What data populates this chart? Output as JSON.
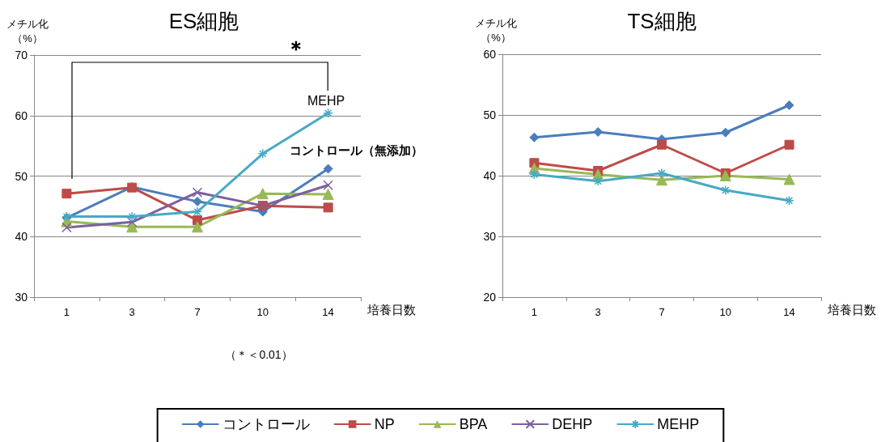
{
  "chart_data": [
    {
      "type": "line",
      "title": "ES細胞",
      "ylabel": "メチル化（%）",
      "xlabel": "培養日数",
      "categories": [
        "1",
        "3",
        "7",
        "10",
        "14"
      ],
      "series": [
        {
          "name": "コントロール",
          "color": "#4a7ebb",
          "marker": "diamond",
          "values": [
            43.1,
            48.2,
            45.8,
            44.1,
            51.2
          ]
        },
        {
          "name": "NP",
          "color": "#be4b48",
          "marker": "square",
          "values": [
            47.1,
            48.1,
            42.7,
            45.1,
            44.8
          ]
        },
        {
          "name": "BPA",
          "color": "#98b954",
          "marker": "triangle",
          "values": [
            42.5,
            41.6,
            41.6,
            47.1,
            47.0
          ]
        },
        {
          "name": "DEHP",
          "color": "#7d5fa0",
          "marker": "cross",
          "values": [
            41.5,
            42.4,
            47.3,
            45.1,
            48.5
          ]
        },
        {
          "name": "MEHP",
          "color": "#46aac5",
          "marker": "cross",
          "values": [
            43.3,
            43.3,
            44.1,
            53.7,
            60.4
          ]
        }
      ],
      "annotations": [
        "MEHP",
        "コントロール（無添加）",
        "＊",
        "（＊＜0.01）"
      ],
      "ylim": [
        30,
        70
      ],
      "yticks": [
        30,
        40,
        50,
        60,
        70
      ],
      "grid": "y",
      "legend": "bottom"
    },
    {
      "type": "line",
      "title": "TS細胞",
      "ylabel": "メチル化（%）",
      "xlabel": "培養日数",
      "categories": [
        "1",
        "3",
        "7",
        "10",
        "14"
      ],
      "series": [
        {
          "color": "#4a7ebb",
          "marker": "diamond",
          "values": [
            46.3,
            47.2,
            46.0,
            47.1,
            51.6
          ]
        },
        {
          "color": "#be4b48",
          "marker": "square",
          "values": [
            42.1,
            40.8,
            45.1,
            40.4,
            45.1
          ]
        },
        {
          "color": "#98b954",
          "marker": "triangle",
          "values": [
            41.2,
            40.2,
            39.3,
            40.0,
            39.4
          ]
        },
        {
          "color": "#46aac5",
          "marker": "cross",
          "values": [
            40.2,
            39.1,
            40.4,
            37.6,
            35.9
          ]
        }
      ],
      "ylim": [
        20,
        60
      ],
      "yticks": [
        20,
        30,
        40,
        50,
        60
      ],
      "grid": "y",
      "legend": false
    }
  ]
}
